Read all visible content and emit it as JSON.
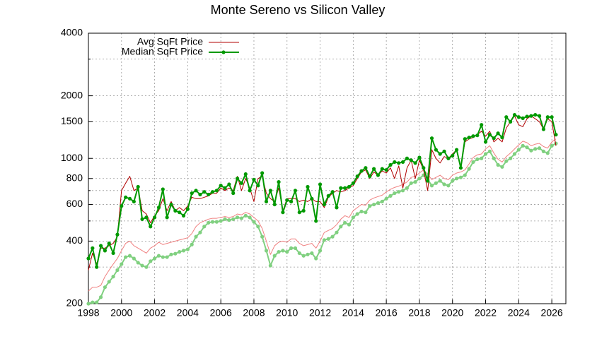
{
  "chart_data": {
    "type": "line",
    "title": "Monte Sereno vs Silicon Valley",
    "log_y": true,
    "grid": true,
    "legend": "top-left",
    "xlim": [
      1998,
      2026.85
    ],
    "ylim": [
      200,
      4000
    ],
    "xticks": [
      1998,
      2000,
      2002,
      2004,
      2006,
      2008,
      2010,
      2012,
      2014,
      2016,
      2018,
      2020,
      2022,
      2024,
      2026
    ],
    "yticks": [
      200,
      400,
      600,
      800,
      1000,
      1500,
      2000,
      4000
    ],
    "minor_grid": [
      300,
      500,
      700,
      3000
    ],
    "x": [
      1998,
      1998.25,
      1998.5,
      1998.75,
      1999,
      1999.25,
      1999.5,
      1999.75,
      2000,
      2000.25,
      2000.5,
      2000.75,
      2001,
      2001.25,
      2001.5,
      2001.75,
      2002,
      2002.25,
      2002.5,
      2002.75,
      2003,
      2003.25,
      2003.5,
      2003.75,
      2004,
      2004.25,
      2004.5,
      2004.75,
      2005,
      2005.25,
      2005.5,
      2005.75,
      2006,
      2006.25,
      2006.5,
      2006.75,
      2007,
      2007.25,
      2007.5,
      2007.75,
      2008,
      2008.25,
      2008.5,
      2008.75,
      2009,
      2009.25,
      2009.5,
      2009.75,
      2010,
      2010.25,
      2010.5,
      2010.75,
      2011,
      2011.25,
      2011.5,
      2011.75,
      2012,
      2012.25,
      2012.5,
      2012.75,
      2013,
      2013.25,
      2013.5,
      2013.75,
      2014,
      2014.25,
      2014.5,
      2014.75,
      2015,
      2015.25,
      2015.5,
      2015.75,
      2016,
      2016.25,
      2016.5,
      2016.75,
      2017,
      2017.25,
      2017.5,
      2017.75,
      2018,
      2018.25,
      2018.5,
      2018.75,
      2019,
      2019.25,
      2019.5,
      2019.75,
      2020,
      2020.25,
      2020.5,
      2020.75,
      2021,
      2021.25,
      2021.5,
      2021.75,
      2022,
      2022.25,
      2022.5,
      2022.75,
      2023,
      2023.25,
      2023.5,
      2023.75,
      2024,
      2024.25,
      2024.5,
      2024.75,
      2025,
      2025.25,
      2025.5,
      2025.75,
      2026,
      2026.25
    ],
    "series": [
      {
        "color": "#f08080",
        "width": 1,
        "markers": false,
        "values": [
          230,
          240,
          240,
          245,
          270,
          290,
          310,
          330,
          360,
          390,
          400,
          380,
          370,
          360,
          350,
          370,
          380,
          395,
          385,
          390,
          395,
          400,
          405,
          410,
          415,
          435,
          470,
          490,
          500,
          510,
          515,
          515,
          520,
          525,
          520,
          525,
          540,
          535,
          550,
          540,
          520,
          500,
          460,
          400,
          345,
          380,
          395,
          400,
          395,
          410,
          410,
          390,
          380,
          385,
          390,
          370,
          400,
          440,
          450,
          460,
          480,
          510,
          530,
          520,
          560,
          580,
          600,
          595,
          630,
          645,
          655,
          665,
          690,
          710,
          725,
          735,
          750,
          770,
          810,
          820,
          850,
          880,
          840,
          790,
          810,
          830,
          800,
          790,
          830,
          850,
          860,
          880,
          940,
          1010,
          1040,
          1050,
          1110,
          1150,
          1060,
          990,
          960,
          1020,
          1060,
          1110,
          1160,
          1210,
          1190,
          1150,
          1170,
          1180,
          1140,
          1120,
          1200,
          1240
        ]
      },
      {
        "color": "#80d080",
        "width": 2,
        "markers": true,
        "values": [
          200,
          203,
          203,
          215,
          240,
          255,
          270,
          290,
          310,
          335,
          340,
          330,
          315,
          305,
          300,
          320,
          330,
          340,
          335,
          335,
          345,
          348,
          355,
          360,
          365,
          385,
          420,
          440,
          470,
          490,
          495,
          495,
          500,
          510,
          505,
          510,
          520,
          515,
          530,
          520,
          495,
          470,
          420,
          360,
          305,
          340,
          355,
          360,
          355,
          370,
          370,
          350,
          340,
          345,
          350,
          330,
          360,
          405,
          410,
          420,
          440,
          470,
          490,
          480,
          520,
          540,
          555,
          550,
          590,
          600,
          610,
          620,
          640,
          660,
          680,
          690,
          700,
          720,
          760,
          770,
          800,
          830,
          790,
          740,
          760,
          780,
          750,
          740,
          780,
          800,
          810,
          830,
          890,
          960,
          990,
          1000,
          1050,
          1080,
          1000,
          930,
          910,
          970,
          1000,
          1050,
          1100,
          1150,
          1130,
          1090,
          1110,
          1120,
          1080,
          1060,
          1150,
          1180
        ]
      },
      {
        "name": "Avg SqFt Price",
        "color": "#b00000",
        "width": 1,
        "markers": false,
        "values": [
          290,
          350,
          310,
          370,
          370,
          380,
          390,
          420,
          700,
          760,
          820,
          700,
          720,
          560,
          540,
          490,
          530,
          560,
          640,
          560,
          620,
          560,
          580,
          560,
          590,
          650,
          640,
          640,
          650,
          660,
          680,
          680,
          720,
          700,
          720,
          700,
          820,
          700,
          800,
          720,
          620,
          800,
          820,
          680,
          640,
          620,
          720,
          560,
          640,
          640,
          640,
          620,
          630,
          620,
          640,
          620,
          620,
          580,
          650,
          680,
          700,
          690,
          700,
          720,
          740,
          800,
          860,
          880,
          800,
          860,
          830,
          870,
          850,
          900,
          800,
          920,
          720,
          900,
          980,
          800,
          980,
          880,
          700,
          1100,
          1000,
          950,
          1020,
          1000,
          1050,
          1100,
          900,
          1200,
          1240,
          1260,
          1300,
          1350,
          1280,
          1350,
          1200,
          1250,
          1200,
          1400,
          1500,
          1600,
          1450,
          1420,
          1550,
          1600,
          1550,
          1500,
          1380,
          1550,
          1500,
          1150
        ]
      },
      {
        "name": "Median SqFt Price",
        "color": "#009900",
        "width": 2,
        "markers": true,
        "values": [
          330,
          370,
          300,
          380,
          360,
          390,
          350,
          430,
          590,
          650,
          640,
          620,
          730,
          510,
          520,
          470,
          520,
          580,
          710,
          520,
          600,
          560,
          550,
          530,
          570,
          680,
          700,
          670,
          690,
          670,
          690,
          700,
          740,
          720,
          750,
          680,
          800,
          760,
          840,
          700,
          790,
          740,
          850,
          620,
          700,
          600,
          770,
          550,
          630,
          620,
          700,
          550,
          560,
          730,
          640,
          500,
          750,
          600,
          660,
          690,
          580,
          720,
          720,
          730,
          760,
          820,
          870,
          900,
          820,
          890,
          830,
          890,
          880,
          930,
          960,
          950,
          960,
          1000,
          980,
          950,
          1010,
          900,
          780,
          1250,
          1100,
          1050,
          1080,
          1000,
          1030,
          1100,
          900,
          1240,
          1260,
          1280,
          1290,
          1450,
          1200,
          1300,
          1250,
          1320,
          1260,
          1580,
          1500,
          1620,
          1580,
          1560,
          1590,
          1600,
          1620,
          1600,
          1380,
          1580,
          1580,
          1300
        ]
      }
    ]
  }
}
